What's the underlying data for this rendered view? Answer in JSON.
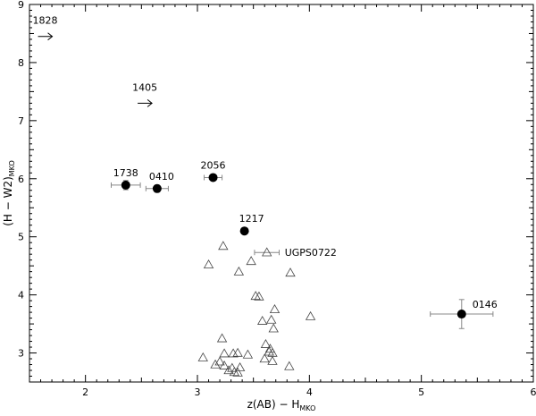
{
  "chart_data": {
    "type": "scatter",
    "xlabel": "z(AB) − H",
    "xlabel_sub": "MKO",
    "ylabel": "(H − W2)",
    "ylabel_sub": "MKO",
    "xlim": [
      1.5,
      6.0
    ],
    "ylim": [
      2.5,
      9.0
    ],
    "xticks": [
      2,
      3,
      4,
      5,
      6
    ],
    "yticks": [
      3,
      4,
      5,
      6,
      7,
      8,
      9
    ],
    "grid": false,
    "labeled_points": [
      {
        "label": "1738",
        "x": 2.36,
        "y": 5.89,
        "xerr": 0.13,
        "yerr": 0.08
      },
      {
        "label": "0410",
        "x": 2.64,
        "y": 5.83,
        "xerr": 0.1,
        "yerr": 0.06
      },
      {
        "label": "2056",
        "x": 3.14,
        "y": 6.02,
        "xerr": 0.08,
        "yerr": 0.05
      },
      {
        "label": "1217",
        "x": 3.42,
        "y": 5.1,
        "xerr": 0.0,
        "yerr": 0.0
      },
      {
        "label": "0146",
        "x": 5.36,
        "y": 3.67,
        "xerr": 0.28,
        "yerr": 0.25
      }
    ],
    "lower_limits": [
      {
        "label": "1828",
        "x": 1.64,
        "y": 8.45
      },
      {
        "label": "1405",
        "x": 2.53,
        "y": 7.3
      }
    ],
    "ugps": {
      "label": "UGPS0722",
      "x": 3.62,
      "y": 4.73,
      "xerr": 0.11
    },
    "triangles": [
      [
        3.23,
        4.84
      ],
      [
        3.1,
        4.52
      ],
      [
        3.48,
        4.58
      ],
      [
        3.37,
        4.4
      ],
      [
        3.83,
        4.38
      ],
      [
        3.52,
        3.98
      ],
      [
        3.55,
        3.97
      ],
      [
        3.69,
        3.75
      ],
      [
        3.58,
        3.55
      ],
      [
        3.66,
        3.57
      ],
      [
        3.68,
        3.42
      ],
      [
        4.01,
        3.63
      ],
      [
        3.22,
        3.25
      ],
      [
        3.61,
        3.15
      ],
      [
        3.65,
        3.07
      ],
      [
        3.64,
        3.02
      ],
      [
        3.67,
        3.0
      ],
      [
        3.6,
        2.9
      ],
      [
        3.67,
        2.86
      ],
      [
        3.05,
        2.92
      ],
      [
        3.24,
        2.99
      ],
      [
        3.32,
        2.99
      ],
      [
        3.36,
        3.0
      ],
      [
        3.45,
        2.97
      ],
      [
        3.16,
        2.8
      ],
      [
        3.24,
        2.78
      ],
      [
        3.31,
        2.74
      ],
      [
        3.38,
        2.75
      ],
      [
        3.28,
        2.7
      ],
      [
        3.33,
        2.67
      ],
      [
        3.36,
        2.66
      ],
      [
        3.2,
        2.85
      ],
      [
        3.82,
        2.77
      ]
    ]
  }
}
